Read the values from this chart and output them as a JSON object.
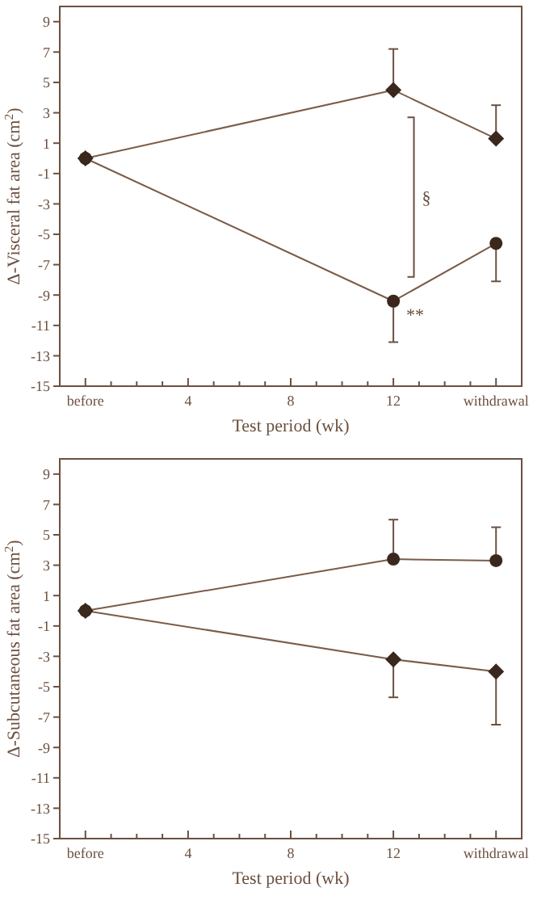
{
  "chart_data": [
    {
      "type": "line",
      "xlabel": "Test period (wk)",
      "ylabel": "Δ-Visceral fat area (cm$^{2}$)",
      "x": [
        0,
        12,
        16
      ],
      "xlim": [
        -1,
        17
      ],
      "ylim": [
        -15,
        10
      ],
      "xticks": [
        {
          "value": 0,
          "label": "before"
        },
        {
          "value": 1,
          "label": null
        },
        {
          "value": 2,
          "label": null
        },
        {
          "value": 3,
          "label": null
        },
        4,
        {
          "value": 5,
          "label": null
        },
        {
          "value": 6,
          "label": null
        },
        {
          "value": 7,
          "label": null
        },
        8,
        {
          "value": 9,
          "label": null
        },
        {
          "value": 10,
          "label": null
        },
        {
          "value": 11,
          "label": null
        },
        12,
        {
          "value": 13,
          "label": null
        },
        {
          "value": 14,
          "label": null
        },
        {
          "value": 15,
          "label": null
        },
        {
          "value": 16,
          "label": "withdrawal"
        }
      ],
      "yticks": [
        -15,
        -13,
        -11,
        -9,
        -7,
        -5,
        -3,
        -1,
        1,
        3,
        5,
        7,
        9
      ],
      "series": [
        {
          "color": "#3a281c",
          "marker": "diamond",
          "values": [
            0,
            4.5,
            1.3
          ],
          "errors": [
            null,
            [
              4.5,
              7.2
            ],
            [
              1.3,
              3.5
            ]
          ]
        },
        {
          "color": "#3a281c",
          "marker": "circle",
          "values": [
            0,
            -9.4,
            -5.6
          ],
          "errors": [
            null,
            [
              -12.1,
              -9.4
            ],
            [
              -8.1,
              -5.6
            ]
          ]
        }
      ],
      "annotations": [
        "§",
        {
          "text": "**",
          "x": 12,
          "y": -9.4
        }
      ]
    },
    {
      "type": "line",
      "xlabel": "Test period (wk)",
      "ylabel": "Δ-Subcutaneous fat area (cm$^{2}$)",
      "x": [
        0,
        12,
        16
      ],
      "xlim": [
        -1,
        17
      ],
      "ylim": [
        -15,
        10
      ],
      "xticks": [
        {
          "value": 0,
          "label": "before"
        },
        {
          "value": 1,
          "label": null
        },
        {
          "value": 2,
          "label": null
        },
        {
          "value": 3,
          "label": null
        },
        4,
        {
          "value": 5,
          "label": null
        },
        {
          "value": 6,
          "label": null
        },
        {
          "value": 7,
          "label": null
        },
        8,
        {
          "value": 9,
          "label": null
        },
        {
          "value": 10,
          "label": null
        },
        {
          "value": 11,
          "label": null
        },
        12,
        {
          "value": 13,
          "label": null
        },
        {
          "value": 14,
          "label": null
        },
        {
          "value": 15,
          "label": null
        },
        {
          "value": 16,
          "label": "withdrawal"
        }
      ],
      "yticks": [
        -15,
        -13,
        -11,
        -9,
        -7,
        -5,
        -3,
        -1,
        1,
        3,
        5,
        7,
        9
      ],
      "series": [
        {
          "color": "#3a281c",
          "marker": "circle",
          "values": [
            0,
            3.4,
            3.3
          ],
          "errors": [
            null,
            [
              3.4,
              6.0
            ],
            [
              3.3,
              5.5
            ]
          ]
        },
        {
          "color": "#3a281c",
          "marker": "diamond",
          "values": [
            0,
            -3.2,
            -4.0
          ],
          "errors": [
            null,
            [
              -5.7,
              -3.2
            ],
            [
              -7.5,
              -4.0
            ]
          ]
        }
      ]
    }
  ]
}
